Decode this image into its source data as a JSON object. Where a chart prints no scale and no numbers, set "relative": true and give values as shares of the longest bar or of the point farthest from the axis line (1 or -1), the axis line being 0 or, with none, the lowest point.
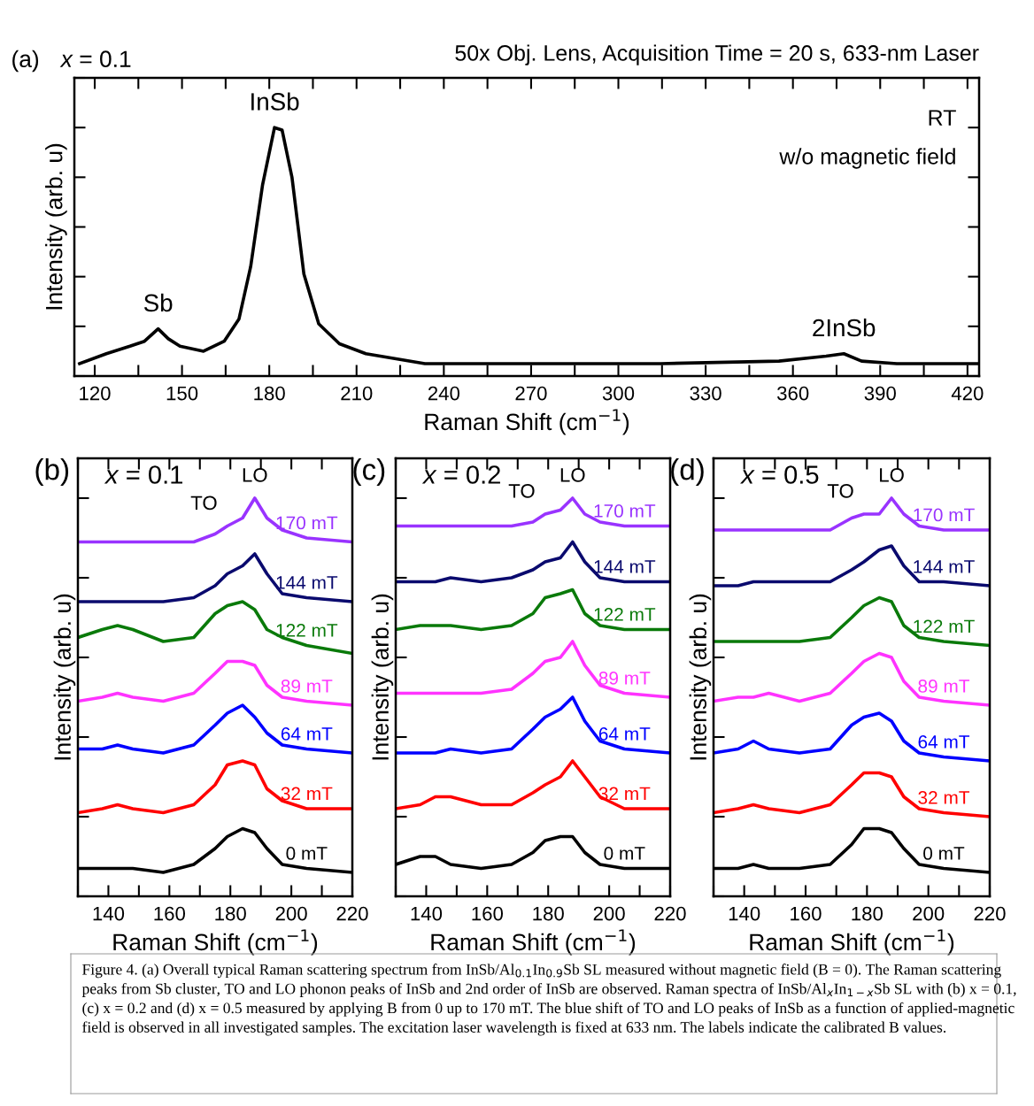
{
  "chart_data": [
    {
      "type": "line",
      "title": "50x Obj. Lens, Acquisition Time = 20 s, 633-nm Laser",
      "xlabel": "Raman Shift (cm$^{−1}$)",
      "ylabel": "Intensity (arb. u)",
      "relative": true,
      "tick_labels": "x",
      "grid": false,
      "legend": false,
      "line_style": "solid",
      "xlim": [
        113,
        424
      ],
      "xticks": [
        120,
        {
          "value": 135,
          "label": null
        },
        150,
        {
          "value": 165,
          "label": null
        },
        180,
        {
          "value": 195,
          "label": null
        },
        210,
        {
          "value": 225,
          "label": null
        },
        240,
        {
          "value": 255,
          "label": null
        },
        270,
        {
          "value": 285,
          "label": null
        },
        300,
        {
          "value": 315,
          "label": null
        },
        330,
        {
          "value": 345,
          "label": null
        },
        360,
        {
          "value": 375,
          "label": null
        },
        390,
        {
          "value": 405,
          "label": null
        },
        420
      ],
      "x": [
        114.8,
        124.0,
        132.1,
        137.1,
        141.8,
        145.3,
        149.3,
        157.4,
        164.5,
        169.6,
        173.6,
        177.7,
        181.8,
        184.4,
        187.8,
        191.9,
        197.0,
        204.1,
        213.2,
        233.5,
        274.0,
        314.6,
        355.2,
        371.4,
        377.5,
        383.6,
        395.7,
        424.0
      ],
      "series": [
        {
          "color": "#000000",
          "values": [
            0.05,
            0.09,
            0.12,
            0.14,
            0.19,
            0.15,
            0.12,
            0.1,
            0.14,
            0.23,
            0.44,
            0.77,
            1.0,
            0.99,
            0.8,
            0.41,
            0.21,
            0.13,
            0.09,
            0.05,
            0.05,
            0.05,
            0.06,
            0.08,
            0.09,
            0.06,
            0.05,
            0.05
          ]
        }
      ],
      "annotations": [
        "(a)",
        "x = 0.1",
        "RT",
        "w/o magnetic field",
        {
          "text": "Sb",
          "x": 141.8,
          "y": 0.19
        },
        {
          "text": "InSb",
          "x": 181.8,
          "y": 1.0
        },
        {
          "text": "2InSb",
          "x": 377.5,
          "y": 0.09
        }
      ]
    },
    {
      "type": "line",
      "xlabel": "Raman Shift (cm$^{−1}$)",
      "ylabel": "Intensity (arb. u)",
      "relative": true,
      "tick_labels": "x",
      "grid": false,
      "legend": false,
      "line_style": "solid",
      "xlim": [
        130,
        220
      ],
      "xticks": [
        {
          "value": 130,
          "label": null
        },
        140,
        {
          "value": 150,
          "label": null
        },
        160,
        {
          "value": 170,
          "label": null
        },
        180,
        {
          "value": 190,
          "label": null
        },
        200,
        {
          "value": 210,
          "label": null
        },
        220
      ],
      "x": [
        130,
        138,
        143,
        148,
        158,
        168,
        175,
        179,
        184,
        188,
        192,
        197,
        205,
        220
      ],
      "series": [
        {
          "name": "0 mT",
          "color": "#000000",
          "values": [
            0.07,
            0.07,
            0.07,
            0.07,
            0.06,
            0.08,
            0.12,
            0.15,
            0.17,
            0.16,
            0.12,
            0.08,
            0.07,
            0.06
          ]
        },
        {
          "name": "32 mT",
          "color": "#ff0000",
          "values": [
            0.21,
            0.22,
            0.23,
            0.22,
            0.21,
            0.23,
            0.28,
            0.33,
            0.34,
            0.33,
            0.27,
            0.24,
            0.22,
            0.22
          ]
        },
        {
          "name": "64 mT",
          "color": "#0000ff",
          "values": [
            0.37,
            0.37,
            0.38,
            0.37,
            0.36,
            0.38,
            0.43,
            0.46,
            0.48,
            0.45,
            0.41,
            0.38,
            0.37,
            0.36
          ]
        },
        {
          "name": "89 mT",
          "color": "#ff33ff",
          "values": [
            0.49,
            0.5,
            0.51,
            0.5,
            0.49,
            0.51,
            0.56,
            0.59,
            0.59,
            0.58,
            0.53,
            0.5,
            0.49,
            0.48
          ]
        },
        {
          "name": "122 mT",
          "color": "#0a7a0a",
          "values": [
            0.65,
            0.67,
            0.68,
            0.67,
            0.64,
            0.65,
            0.71,
            0.73,
            0.74,
            0.72,
            0.67,
            0.65,
            0.63,
            0.61
          ]
        },
        {
          "name": "144 mT",
          "color": "#0a0a6e",
          "values": [
            0.74,
            0.74,
            0.74,
            0.74,
            0.74,
            0.75,
            0.78,
            0.81,
            0.83,
            0.86,
            0.81,
            0.76,
            0.75,
            0.74
          ]
        },
        {
          "name": "170 mT",
          "color": "#9933ff",
          "values": [
            0.89,
            0.89,
            0.89,
            0.89,
            0.89,
            0.89,
            0.91,
            0.93,
            0.95,
            1.0,
            0.95,
            0.92,
            0.9,
            0.89
          ]
        }
      ],
      "annotations": [
        "(b)",
        "x = 0.1",
        {
          "text": "TO",
          "x": 179,
          "y": 0.93
        },
        {
          "text": "LO",
          "x": 188,
          "y": 1.0
        }
      ]
    },
    {
      "type": "line",
      "xlabel": "Raman Shift (cm$^{−1}$)",
      "ylabel": "Intensity (arb. u)",
      "relative": true,
      "tick_labels": "x",
      "grid": false,
      "legend": false,
      "line_style": "solid",
      "xlim": [
        130,
        220
      ],
      "xticks": [
        {
          "value": 130,
          "label": null
        },
        140,
        {
          "value": 150,
          "label": null
        },
        160,
        {
          "value": 170,
          "label": null
        },
        180,
        {
          "value": 190,
          "label": null
        },
        200,
        {
          "value": 210,
          "label": null
        },
        220
      ],
      "x": [
        130,
        138,
        143,
        148,
        158,
        168,
        175,
        179,
        184,
        188,
        192,
        197,
        205,
        220
      ],
      "series": [
        {
          "name": "0 mT",
          "color": "#000000",
          "values": [
            0.08,
            0.1,
            0.1,
            0.08,
            0.07,
            0.08,
            0.11,
            0.14,
            0.15,
            0.15,
            0.11,
            0.08,
            0.07,
            0.07
          ]
        },
        {
          "name": "32 mT",
          "color": "#ff0000",
          "values": [
            0.22,
            0.23,
            0.25,
            0.25,
            0.23,
            0.23,
            0.26,
            0.28,
            0.3,
            0.34,
            0.3,
            0.25,
            0.22,
            0.22
          ]
        },
        {
          "name": "64 mT",
          "color": "#0000ff",
          "values": [
            0.36,
            0.36,
            0.36,
            0.37,
            0.36,
            0.37,
            0.42,
            0.45,
            0.47,
            0.5,
            0.44,
            0.39,
            0.37,
            0.36
          ]
        },
        {
          "name": "89 mT",
          "color": "#ff33ff",
          "values": [
            0.51,
            0.51,
            0.51,
            0.51,
            0.51,
            0.52,
            0.56,
            0.59,
            0.6,
            0.64,
            0.58,
            0.53,
            0.51,
            0.5
          ]
        },
        {
          "name": "122 mT",
          "color": "#0a7a0a",
          "values": [
            0.67,
            0.68,
            0.68,
            0.68,
            0.67,
            0.68,
            0.71,
            0.75,
            0.76,
            0.77,
            0.71,
            0.68,
            0.67,
            0.67
          ]
        },
        {
          "name": "144 mT",
          "color": "#0a0a6e",
          "values": [
            0.79,
            0.79,
            0.79,
            0.8,
            0.79,
            0.8,
            0.82,
            0.84,
            0.85,
            0.89,
            0.84,
            0.8,
            0.79,
            0.79
          ]
        },
        {
          "name": "170 mT",
          "color": "#9933ff",
          "values": [
            0.93,
            0.93,
            0.93,
            0.93,
            0.93,
            0.93,
            0.94,
            0.96,
            0.97,
            1.0,
            0.96,
            0.94,
            0.93,
            0.93
          ]
        }
      ],
      "annotations": [
        "(c)",
        "x = 0.2",
        {
          "text": "TO",
          "x": 179,
          "y": 0.96
        },
        {
          "text": "LO",
          "x": 188,
          "y": 1.0
        }
      ]
    },
    {
      "type": "line",
      "xlabel": "Raman Shift (cm$^{−1}$)",
      "ylabel": "Intensity (arb. u)",
      "relative": true,
      "tick_labels": "x",
      "grid": false,
      "legend": false,
      "line_style": "solid",
      "xlim": [
        130,
        220
      ],
      "xticks": [
        {
          "value": 130,
          "label": null
        },
        140,
        {
          "value": 150,
          "label": null
        },
        160,
        {
          "value": 170,
          "label": null
        },
        180,
        {
          "value": 190,
          "label": null
        },
        200,
        {
          "value": 210,
          "label": null
        },
        220
      ],
      "x": [
        130,
        138,
        143,
        148,
        158,
        168,
        175,
        179,
        184,
        188,
        192,
        197,
        205,
        220
      ],
      "series": [
        {
          "name": "0 mT",
          "color": "#000000",
          "values": [
            0.07,
            0.07,
            0.08,
            0.07,
            0.07,
            0.08,
            0.13,
            0.17,
            0.17,
            0.16,
            0.12,
            0.08,
            0.07,
            0.06
          ]
        },
        {
          "name": "32 mT",
          "color": "#ff0000",
          "values": [
            0.21,
            0.22,
            0.23,
            0.22,
            0.21,
            0.23,
            0.28,
            0.31,
            0.31,
            0.3,
            0.25,
            0.22,
            0.21,
            0.2
          ]
        },
        {
          "name": "64 mT",
          "color": "#0000ff",
          "values": [
            0.36,
            0.37,
            0.39,
            0.37,
            0.36,
            0.37,
            0.43,
            0.45,
            0.46,
            0.44,
            0.39,
            0.36,
            0.35,
            0.34
          ]
        },
        {
          "name": "89 mT",
          "color": "#ff33ff",
          "values": [
            0.49,
            0.5,
            0.5,
            0.51,
            0.49,
            0.51,
            0.56,
            0.59,
            0.61,
            0.6,
            0.54,
            0.5,
            0.49,
            0.48
          ]
        },
        {
          "name": "122 mT",
          "color": "#0a7a0a",
          "values": [
            0.64,
            0.64,
            0.64,
            0.64,
            0.64,
            0.65,
            0.7,
            0.73,
            0.75,
            0.74,
            0.68,
            0.65,
            0.64,
            0.63
          ]
        },
        {
          "name": "144 mT",
          "color": "#0a0a6e",
          "values": [
            0.78,
            0.78,
            0.79,
            0.79,
            0.79,
            0.79,
            0.82,
            0.84,
            0.87,
            0.88,
            0.83,
            0.79,
            0.79,
            0.78
          ]
        },
        {
          "name": "170 mT",
          "color": "#9933ff",
          "values": [
            0.92,
            0.92,
            0.92,
            0.92,
            0.92,
            0.92,
            0.95,
            0.96,
            0.96,
            1.0,
            0.96,
            0.93,
            0.92,
            0.92
          ]
        }
      ],
      "annotations": [
        "(d)",
        "x = 0.5",
        {
          "text": "TO",
          "x": 179,
          "y": 0.96
        },
        {
          "text": "LO",
          "x": 188,
          "y": 1.0
        }
      ]
    },
    {
      "type": "other",
      "annotations": [
        "Figure 4. (a) Overall typical Raman scattering spectrum from InSb/Al$_{0.1}$In$_{0.9}$Sb SL measured without magnetic field (B = 0). The Raman scattering peaks from Sb cluster, TO and LO phonon peaks of InSb and 2nd order of InSb are observed. Raman spectra of InSb/Al$_{x}$In$_{1−x}$Sb SL with (b) x = 0.1, (c) x = 0.2 and (d) x = 0.5 measured by applying B from 0 up to 170 mT. The blue shift of TO and LO peaks of InSb as a function of applied-magnetic field is observed in all investigated samples. The excitation laser wavelength is fixed at 633 nm. The labels indicate the calibrated B values."
      ]
    }
  ]
}
